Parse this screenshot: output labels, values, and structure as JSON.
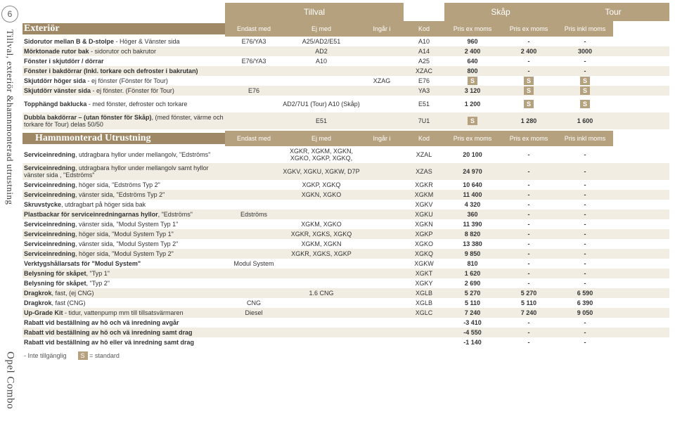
{
  "page_number": "6",
  "sidebar": {
    "line1": "Tillval, exteriör &",
    "line2": "hamnmonterad utrustning",
    "brand": "Opel Combo"
  },
  "top": {
    "tillval": "Tillval",
    "skap": "Skåp",
    "tour": "Tour"
  },
  "section1": {
    "title": "Exteriör",
    "cols": [
      "Endast med",
      "Ej med",
      "Ingår i",
      "Kod",
      "Pris ex moms",
      "Pris ex moms",
      "Pris inkl moms"
    ]
  },
  "rows1": [
    {
      "d": "Sidorutor mellan B & D-stolpe - Höger & Vänster sida",
      "c1": "E76/YA3",
      "c2": "A25/AD2/E51",
      "c3": "",
      "c4": "A10",
      "c5": "960",
      "c6": "-",
      "c7": "-"
    },
    {
      "d": "Mörktonade rutor bak - sidorutor och bakrutor",
      "c1": "",
      "c2": "AD2",
      "c3": "",
      "c4": "A14",
      "c5": "2 400",
      "c6": "2 400",
      "c7": "3000"
    },
    {
      "d": "Fönster i skjutdörr / dörrar",
      "c1": "E76/YA3",
      "c2": "A10",
      "c3": "",
      "c4": "A25",
      "c5": "640",
      "c6": "-",
      "c7": "-"
    },
    {
      "d": "Fönster i bakdörrar (Inkl. torkare och defroster i bakrutan)",
      "c1": "",
      "c2": "",
      "c3": "",
      "c4": "XZAC",
      "c5": "800",
      "c6": "-",
      "c7": "-"
    },
    {
      "d": "Skjutdörr höger sida - ej fönster (Fönster för Tour)",
      "c1": "",
      "c2": "",
      "c3": "XZAG",
      "c4": "E76",
      "c5": "S",
      "c6": "S",
      "c7": "S"
    },
    {
      "d": "Skjutdörr vänster sida - ej fönster. (Fönster för Tour)",
      "c1": "E76",
      "c2": "",
      "c3": "",
      "c4": "YA3",
      "c5": "3 120",
      "c6": "S",
      "c7": "S"
    },
    {
      "d": "Topphängd baklucka - med fönster, defroster och torkare",
      "c1": "",
      "c2": "AD2/7U1 (Tour) A10 (Skåp)",
      "c3": "",
      "c4": "E51",
      "c5": "1 200",
      "c6": "S",
      "c7": "S",
      "tall": true
    },
    {
      "d": "Dubbla bakdörrar – (utan fönster för Skåp), (med fönster, värme och torkare för Tour) delas 50/50",
      "c1": "",
      "c2": "E51",
      "c3": "",
      "c4": "7U1",
      "c5": "S",
      "c6": "1 280",
      "c7": "1 600",
      "tall": true
    }
  ],
  "section2": {
    "title": "Hamnmonterad Utrustning",
    "cols": [
      "Endast med",
      "Ej med",
      "Ingår i",
      "Kod",
      "Pris ex moms",
      "Pris ex moms",
      "Pris inkl moms"
    ]
  },
  "rows2": [
    {
      "d": "Serviceinredning, utdragbara hyllor under mellangolv, \"Edströms\"",
      "c1": "",
      "c2": "XGKR, XGKM, XGKN, XGKO, XGKP, XGKQ,",
      "c3": "",
      "c4": "XZAL",
      "c5": "20 100",
      "c6": "-",
      "c7": "-",
      "tall": true
    },
    {
      "d": "Serviceinredning, utdragbara hyllor under mellangolv samt hyllor vänster sida , \"Edströms\"",
      "c1": "",
      "c2": "XGKV, XGKU, XGKW, D7P",
      "c3": "",
      "c4": "XZAS",
      "c5": "24 970",
      "c6": "-",
      "c7": "-",
      "tall": true
    },
    {
      "d": "Serviceinredning, höger sida, \"Edströms Typ 2\"",
      "c1": "",
      "c2": "XGKP, XGKQ",
      "c3": "",
      "c4": "XGKR",
      "c5": "10 640",
      "c6": "-",
      "c7": "-"
    },
    {
      "d": "Serviceinredning, vänster sida, \"Edströms Typ 2\"",
      "c1": "",
      "c2": "XGKN, XGKO",
      "c3": "",
      "c4": "XGKM",
      "c5": "11 400",
      "c6": "-",
      "c7": "-"
    },
    {
      "d": "Skruvstycke, utdragbart på höger sida bak",
      "c1": "",
      "c2": "",
      "c3": "",
      "c4": "XGKV",
      "c5": "4 320",
      "c6": "-",
      "c7": "-"
    },
    {
      "d": "Plastbackar för serviceinredningarnas hyllor, \"Edströms\"",
      "c1": "Edströms",
      "c2": "",
      "c3": "",
      "c4": "XGKU",
      "c5": "360",
      "c6": "-",
      "c7": "-"
    },
    {
      "d": "Serviceinredning, vänster sida, \"Modul System Typ 1\"",
      "c1": "",
      "c2": "XGKM, XGKO",
      "c3": "",
      "c4": "XGKN",
      "c5": "11 390",
      "c6": "-",
      "c7": "-"
    },
    {
      "d": "Serviceinredning, höger sida, \"Modul System Typ 1\"",
      "c1": "",
      "c2": "XGKR, XGKS, XGKQ",
      "c3": "",
      "c4": "XGKP",
      "c5": "8 820",
      "c6": "-",
      "c7": "-"
    },
    {
      "d": "Serviceinredning, vänster sida, \"Modul System Typ 2\"",
      "c1": "",
      "c2": "XGKM, XGKN",
      "c3": "",
      "c4": "XGKO",
      "c5": "13 380",
      "c6": "-",
      "c7": "-"
    },
    {
      "d": "Serviceinredning, höger sida, \"Modul System Typ 2\"",
      "c1": "",
      "c2": "XGKR, XGKS, XGKP",
      "c3": "",
      "c4": "XGKQ",
      "c5": "9 850",
      "c6": "-",
      "c7": "-"
    },
    {
      "d": "Verktygshållarsats för \"Modul System\"",
      "c1": "Modul System",
      "c2": "",
      "c3": "",
      "c4": "XGKW",
      "c5": "810",
      "c6": "-",
      "c7": "-"
    },
    {
      "d": "Belysning för skåpet, \"Typ 1\"",
      "c1": "",
      "c2": "",
      "c3": "",
      "c4": "XGKT",
      "c5": "1 620",
      "c6": "-",
      "c7": "-"
    },
    {
      "d": "Belysning för skåpet, \"Typ 2\"",
      "c1": "",
      "c2": "",
      "c3": "",
      "c4": "XGKY",
      "c5": "2 690",
      "c6": "-",
      "c7": "-"
    },
    {
      "d": "Dragkrok, fast, (ej CNG)",
      "c1": "",
      "c2": "1.6 CNG",
      "c3": "",
      "c4": "XGLB",
      "c5": "5 270",
      "c6": "5 270",
      "c7": "6 590"
    },
    {
      "d": "Dragkrok, fast (CNG)",
      "c1": "CNG",
      "c2": "",
      "c3": "",
      "c4": "XGLB",
      "c5": "5 110",
      "c6": "5 110",
      "c7": "6 390"
    },
    {
      "d": "Up-Grade Kit - tidur, vattenpump mm till tillsatsvärmaren",
      "c1": "Diesel",
      "c2": "",
      "c3": "",
      "c4": "XGLC",
      "c5": "7 240",
      "c6": "7 240",
      "c7": "9 050"
    },
    {
      "d": "Rabatt vid beställning av hö och vä inredning avgår",
      "c1": "",
      "c2": "",
      "c3": "",
      "c4": "",
      "c5": "-3 410",
      "c6": "-",
      "c7": "-"
    },
    {
      "d": "Rabatt vid beställning av hö och vä inredning samt drag",
      "c1": "",
      "c2": "",
      "c3": "",
      "c4": "",
      "c5": "-4 550",
      "c6": "-",
      "c7": "-"
    },
    {
      "d": "Rabatt vid beställning av hö eller vä inredning samt drag",
      "c1": "",
      "c2": "",
      "c3": "",
      "c4": "",
      "c5": "-1 140",
      "c6": "-",
      "c7": "-"
    }
  ],
  "legend": {
    "na": "- Inte tillgänglig",
    "std_box": "S",
    "std_text": "= standard"
  }
}
